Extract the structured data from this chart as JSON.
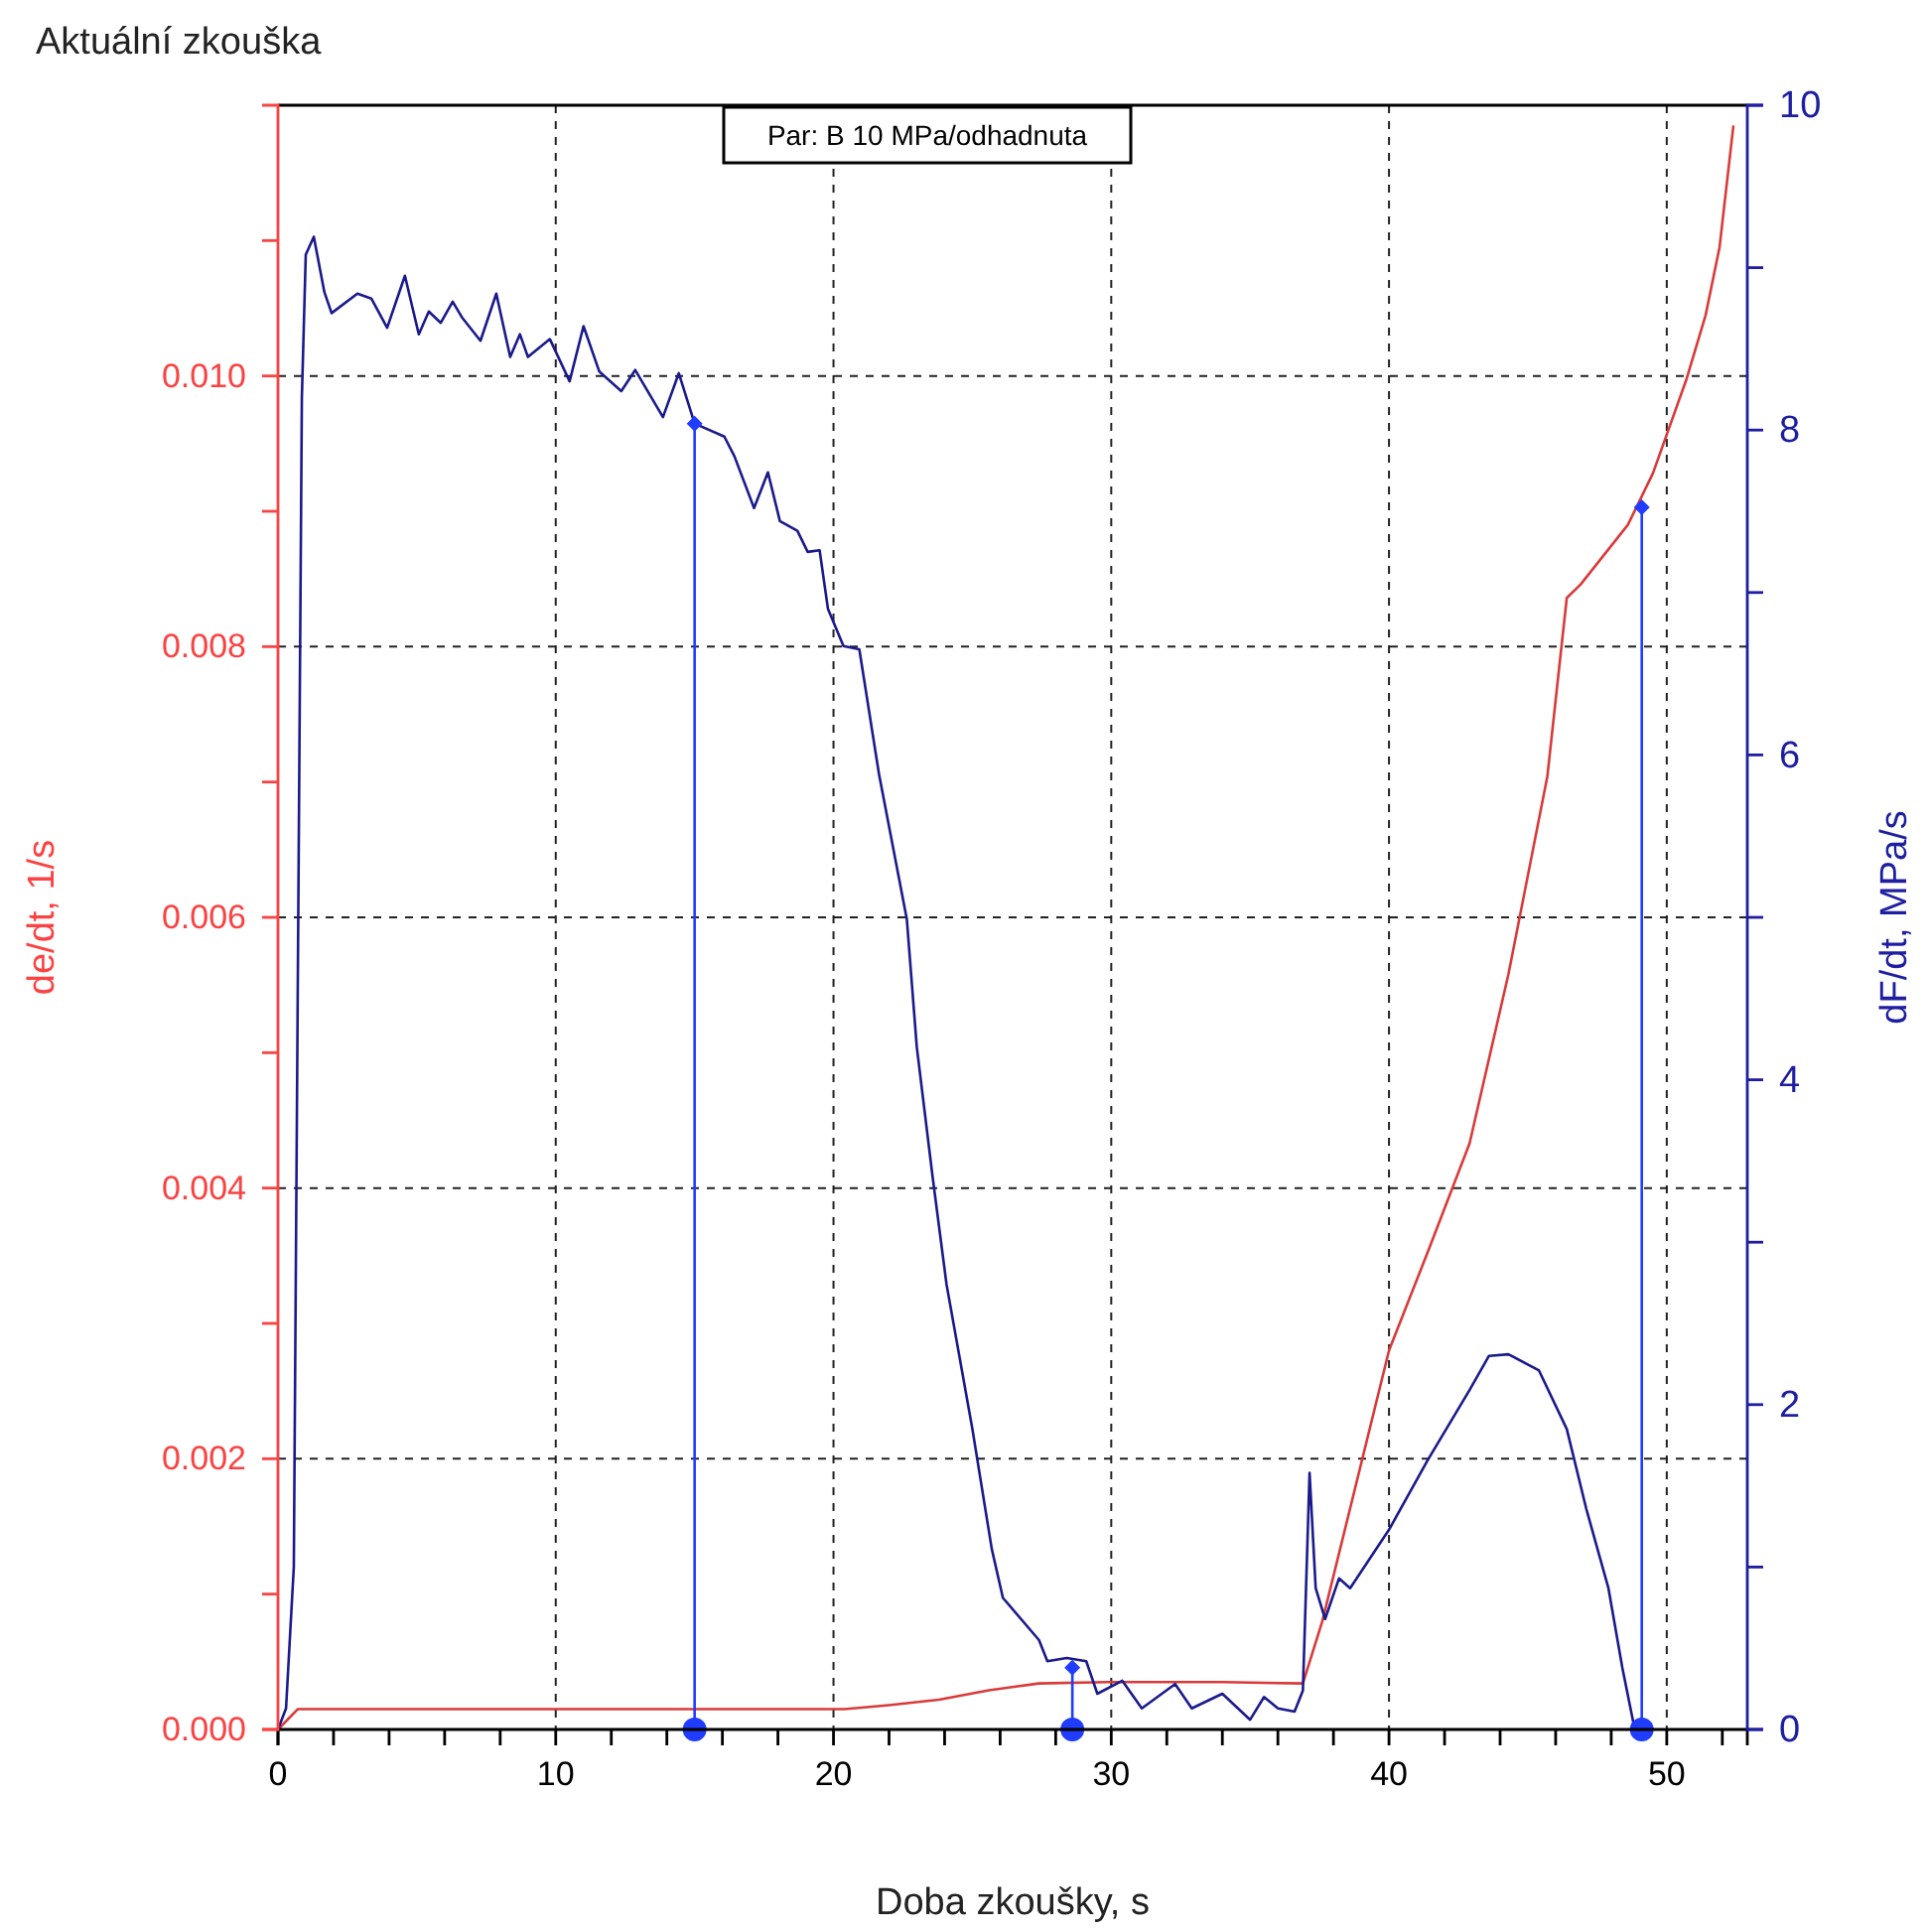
{
  "chart_data": {
    "type": "line",
    "title": "Aktuální zkouška",
    "xlabel": "Doba zkoušky, s",
    "ylabel": "de/dt, 1/s",
    "y2label": "dF/dt, MPa/s",
    "annotations": [
      "Par: B 10 MPa/odhadnuta"
    ],
    "xlim": [
      0,
      52.9
    ],
    "ylim": [
      0,
      0.012
    ],
    "y2lim": [
      0,
      10
    ],
    "xticks": [
      0,
      {
        "value": 2,
        "label": null
      },
      {
        "value": 4,
        "label": null
      },
      {
        "value": 6,
        "label": null
      },
      {
        "value": 8,
        "label": null
      },
      10,
      {
        "value": 12,
        "label": null
      },
      {
        "value": 14,
        "label": null
      },
      {
        "value": 16,
        "label": null
      },
      {
        "value": 18,
        "label": null
      },
      20,
      {
        "value": 22,
        "label": null
      },
      {
        "value": 24,
        "label": null
      },
      {
        "value": 26,
        "label": null
      },
      {
        "value": 28,
        "label": null
      },
      30,
      {
        "value": 32,
        "label": null
      },
      {
        "value": 34,
        "label": null
      },
      {
        "value": 36,
        "label": null
      },
      {
        "value": 38,
        "label": null
      },
      40,
      {
        "value": 42,
        "label": null
      },
      {
        "value": 44,
        "label": null
      },
      {
        "value": 46,
        "label": null
      },
      {
        "value": 48,
        "label": null
      },
      50,
      {
        "value": 52,
        "label": null
      }
    ],
    "yticks": [
      {
        "value": 0,
        "label": "0.000"
      },
      {
        "value": 0.001,
        "label": null
      },
      {
        "value": 0.002,
        "label": "0.002"
      },
      {
        "value": 0.003,
        "label": null
      },
      {
        "value": 0.004,
        "label": "0.004"
      },
      {
        "value": 0.005,
        "label": null
      },
      {
        "value": 0.006,
        "label": "0.006"
      },
      {
        "value": 0.007,
        "label": null
      },
      {
        "value": 0.008,
        "label": "0.008"
      },
      {
        "value": 0.009,
        "label": null
      },
      {
        "value": 0.01,
        "label": "0.010"
      },
      {
        "value": 0.011,
        "label": null
      }
    ],
    "y2ticks": [
      0,
      {
        "value": 1,
        "label": null
      },
      2,
      {
        "value": 3,
        "label": null
      },
      4,
      {
        "value": 5,
        "label": null
      },
      6,
      {
        "value": 7,
        "label": null
      },
      8,
      {
        "value": 9,
        "label": null
      },
      10
    ],
    "grid": true,
    "marker": "none",
    "line_style": "solid",
    "series": [
      {
        "type": "line",
        "axis": "y",
        "color": "#d93a3a",
        "x": [
          0,
          0.71,
          20.4,
          22,
          23.8,
          25.6,
          27.4,
          29.9,
          34,
          36.9,
          37.6,
          40,
          41.4,
          42.9,
          44.3,
          45.7,
          46.4,
          46.9,
          48.6,
          49.5,
          50.7,
          51.4,
          51.9,
          52.4
        ],
        "values": [
          0,
          0.00015,
          0.00015,
          0.00018,
          0.00022,
          0.00029,
          0.00034,
          0.00035,
          0.00035,
          0.00034,
          0.0008,
          0.0028,
          0.00353,
          0.00433,
          0.00558,
          0.00704,
          0.00836,
          0.00846,
          0.0089,
          0.00928,
          0.00997,
          0.01045,
          0.01095,
          0.01185
        ]
      },
      {
        "type": "line",
        "axis": "y2",
        "color": "#1a1a8c",
        "x": [
          0,
          0.29,
          0.57,
          0.71,
          0.86,
          1.0,
          1.29,
          1.67,
          1.93,
          2.86,
          3.36,
          3.93,
          4.57,
          5.07,
          5.43,
          5.86,
          6.29,
          6.64,
          7.29,
          7.86,
          8.36,
          8.71,
          9.0,
          9.79,
          10.5,
          11.0,
          11.57,
          12.36,
          12.86,
          13.86,
          14.43,
          15.0,
          16.07,
          16.43,
          17.14,
          17.64,
          18.07,
          18.7,
          19.07,
          19.5,
          19.8,
          20.36,
          20.93,
          21.64,
          22.64,
          23.0,
          23.57,
          24.07,
          25.0,
          25.7,
          26.1,
          27.4,
          27.7,
          28.4,
          29.1,
          29.5,
          30.4,
          31.1,
          32.3,
          32.9,
          34.0,
          35.0,
          35.5,
          36.0,
          36.6,
          36.9,
          37.14,
          37.36,
          37.7,
          38.2,
          38.6,
          40.0,
          41.4,
          42.9,
          43.6,
          44.3,
          45.4,
          46.4,
          47.1,
          47.9,
          48.4,
          48.8,
          48.9
        ],
        "values": [
          0,
          0.13,
          1.0,
          4.5,
          8.2,
          9.08,
          9.19,
          8.85,
          8.72,
          8.84,
          8.81,
          8.63,
          8.95,
          8.59,
          8.73,
          8.66,
          8.79,
          8.69,
          8.55,
          8.84,
          8.45,
          8.59,
          8.45,
          8.56,
          8.3,
          8.64,
          8.36,
          8.24,
          8.37,
          8.08,
          8.35,
          8.04,
          7.96,
          7.84,
          7.52,
          7.74,
          7.44,
          7.38,
          7.25,
          7.26,
          6.9,
          6.67,
          6.65,
          5.88,
          4.99,
          4.2,
          3.4,
          2.74,
          1.85,
          1.11,
          0.81,
          0.55,
          0.42,
          0.44,
          0.42,
          0.22,
          0.3,
          0.13,
          0.28,
          0.13,
          0.22,
          0.06,
          0.2,
          0.13,
          0.11,
          0.24,
          1.58,
          0.87,
          0.68,
          0.93,
          0.87,
          1.23,
          1.66,
          2.09,
          2.3,
          2.31,
          2.21,
          1.85,
          1.36,
          0.87,
          0.38,
          0.04,
          0
        ]
      },
      {
        "type": "lollipop",
        "axis": "y2",
        "marker": "diamond",
        "color": "#1f3cff",
        "x": [
          15,
          28.6
        ],
        "values": [
          8.04,
          0.38
        ]
      },
      {
        "type": "lollipop",
        "axis": "y",
        "marker": "diamond",
        "color": "#1f3cff",
        "x": [
          49.1
        ],
        "values": [
          0.00903
        ]
      },
      {
        "type": "scatter",
        "axis": "y",
        "marker": "circle",
        "color": "#1f3cff",
        "x": [
          15,
          28.6,
          49.1
        ],
        "values": [
          0,
          0,
          0
        ]
      }
    ]
  }
}
